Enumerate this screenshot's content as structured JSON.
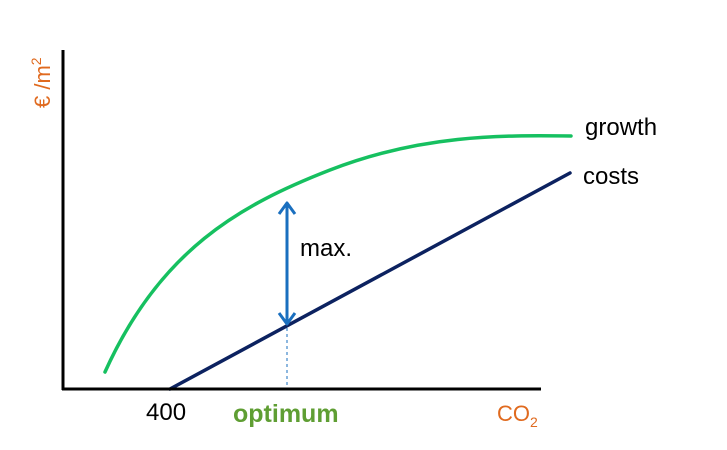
{
  "chart_data": {
    "type": "line",
    "ylabel": "€ /m",
    "ylabel_sup": "2",
    "xlabel": "CO",
    "xlabel_sub": "2",
    "x_tick": "400",
    "optimum_label": "optimum",
    "difference_label": "max.",
    "series": [
      {
        "name": "growth",
        "color": "#16c060"
      },
      {
        "name": "costs",
        "color": "#0c2260"
      }
    ],
    "colors": {
      "axis_labels": "#e06a1f",
      "optimum": "#5f9e33",
      "arrow": "#1a6fbf",
      "axes": "#000000"
    }
  }
}
